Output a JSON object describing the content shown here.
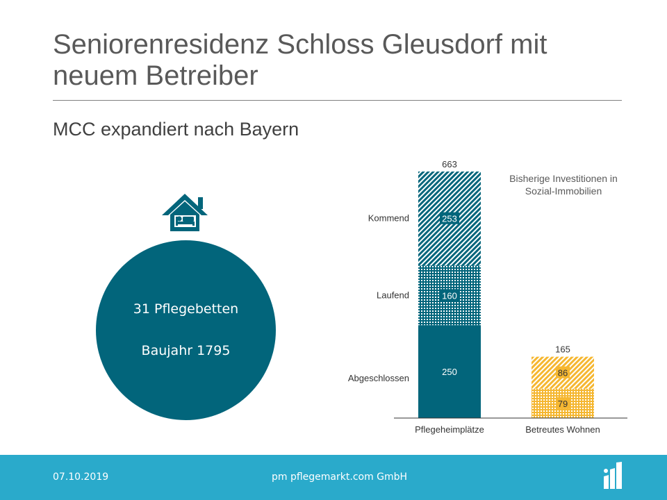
{
  "slide": {
    "title": "Seniorenresidenz Schloss Gleusdorf mit neuem Betreiber",
    "subtitle": "MCC expandiert  nach Bayern"
  },
  "facility": {
    "icon": "house-bed-icon",
    "beds": "31 Pflegebetten",
    "built": "Baujahr 1795"
  },
  "chart_note": "Bisherige Investitionen  in Sozial-Immobilien",
  "chart_data": {
    "type": "bar",
    "stacked": true,
    "categories": [
      "Pflegeheimplätze",
      "Betreutes Wohnen"
    ],
    "totals": [
      663,
      165
    ],
    "series": [
      {
        "name": "Abgeschlossen",
        "values": [
          250,
          79
        ]
      },
      {
        "name": "Laufend",
        "values": [
          160,
          null
        ]
      },
      {
        "name": "Kommend",
        "values": [
          253,
          86
        ]
      }
    ],
    "title": "",
    "xlabel": "",
    "ylabel": "",
    "ylim": [
      0,
      663
    ],
    "grid": false,
    "legend": "left, inline category labels",
    "colors": {
      "Pflegeheimplätze": "#02657b",
      "Betreutes Wohnen": "#f5b731"
    }
  },
  "footer": {
    "date": "07.10.2019",
    "company": "pm pflegemarkt.com GmbH",
    "logo_icon": "pflegemarkt-logo-icon"
  },
  "colors": {
    "primary": "#02657b",
    "footer": "#2aaacb",
    "accent": "#f5b731"
  }
}
